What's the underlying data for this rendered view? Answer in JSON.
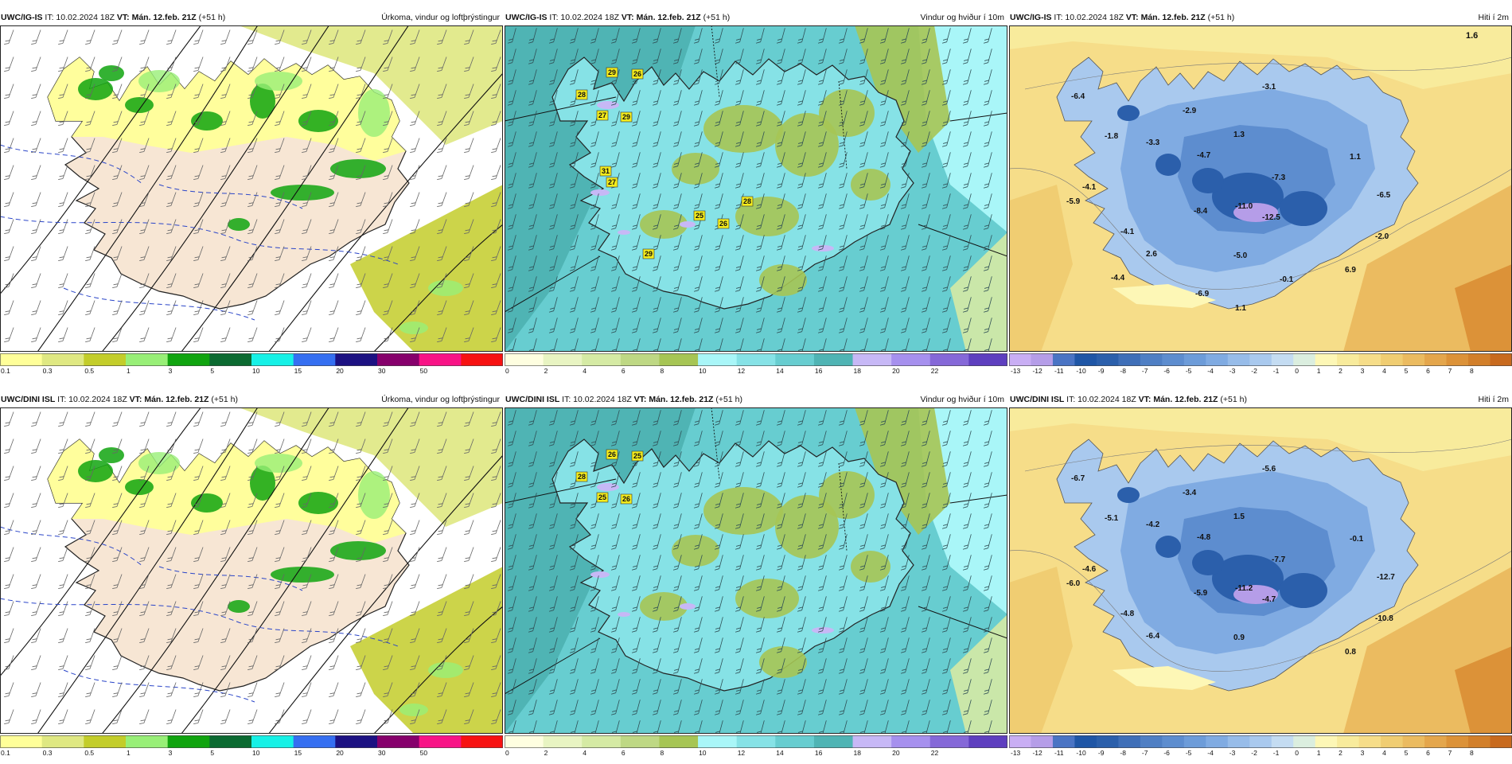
{
  "rows": [
    {
      "model": "UWC/IG-IS",
      "it_label": "IT: 10.02.2024 18Z",
      "vt_label": "VT: Mán. 12.feb. 21Z",
      "lead": "(+51 h)",
      "panels": [
        {
          "kind": "precip",
          "variable": "Úrkoma, vindur og loftþrýstingur"
        },
        {
          "kind": "wind",
          "variable": "Vindur og hviður í 10m",
          "gust_labels": [
            "28",
            "29",
            "26",
            "27",
            "29",
            "31",
            "27",
            "28",
            "25",
            "26",
            "29"
          ]
        },
        {
          "kind": "temp",
          "variable": "Hiti í 2m",
          "corner_value": "1.6",
          "temp_labels": [
            "-6.4",
            "-1.8",
            "-3.3",
            "-2.9",
            "1.3",
            "-3.1",
            "-4.7",
            "1.1",
            "-7.3",
            "-4.1",
            "-5.9",
            "-8.4",
            "-11.0",
            "-6.5",
            "-4.1",
            "-12.5",
            "-2.0",
            "2.6",
            "-5.0",
            "6.9",
            "-4.4",
            "-0.1",
            "-6.9",
            "1.1"
          ]
        }
      ]
    },
    {
      "model": "UWC/DINI ISL",
      "it_label": "IT: 10.02.2024 18Z",
      "vt_label": "VT: Mán. 12.feb. 21Z",
      "lead": "(+51 h)",
      "panels": [
        {
          "kind": "precip",
          "variable": "Úrkoma, vindur og loftþrýstingur"
        },
        {
          "kind": "wind",
          "variable": "Vindur og hviður í 10m",
          "gust_labels": [
            "28",
            "26",
            "25",
            "25",
            "26"
          ]
        },
        {
          "kind": "temp",
          "variable": "Hiti í 2m",
          "temp_labels": [
            "-6.7",
            "-5.1",
            "-4.2",
            "-3.4",
            "1.5",
            "-5.6",
            "-4.8",
            "-0.1",
            "-7.7",
            "-4.6",
            "-6.0",
            "-5.9",
            "-11.2",
            "-12.7",
            "-4.8",
            "-4.7",
            "-10.8",
            "-6.4",
            "0.9",
            "0.8"
          ]
        }
      ]
    }
  ],
  "scales": {
    "precip": {
      "ticks": [
        "0.1",
        "0.3",
        "0.5",
        "1",
        "3",
        "5",
        "10",
        "15",
        "20",
        "30",
        "50"
      ],
      "colors": [
        "#ffff99",
        "#dfe882",
        "#c3cd2a",
        "#98ef77",
        "#10a40f",
        "#0b6a31",
        "#16f1e6",
        "#356ff1",
        "#1c1182",
        "#86006c",
        "#f81386",
        "#f71212"
      ]
    },
    "wind": {
      "ticks": [
        "0",
        "2",
        "4",
        "6",
        "8",
        "10",
        "12",
        "14",
        "16",
        "18",
        "20",
        "22"
      ],
      "colors": [
        "#fefee0",
        "#e8f4c2",
        "#d5eaa4",
        "#bed884",
        "#a6c554",
        "#a9f6f8",
        "#86e2e6",
        "#67cdd0",
        "#4fb4b4",
        "#c7b8f6",
        "#a690ee",
        "#8568d8",
        "#5e3fbf"
      ]
    },
    "temp": {
      "ticks": [
        "-13",
        "-12",
        "-11",
        "-10",
        "-9",
        "-8",
        "-7",
        "-6",
        "-5",
        "-4",
        "-3",
        "-2",
        "-1",
        "0",
        "1",
        "2",
        "3",
        "4",
        "5",
        "6",
        "7",
        "8"
      ],
      "colors": [
        "#c9aef4",
        "#b59de8",
        "#4a74c4",
        "#1f56a6",
        "#2b5fab",
        "#3f6fb8",
        "#4f7fc4",
        "#5d8dcf",
        "#6d9cd9",
        "#80abe2",
        "#97bce9",
        "#a9c9ee",
        "#c4dcf2",
        "#dbeedf",
        "#fdf7b6",
        "#f8eb9c",
        "#f6dd89",
        "#f0cd72",
        "#ebbb60",
        "#e4a64c",
        "#dc9238",
        "#d27f2a",
        "#c86a1e"
      ]
    }
  }
}
